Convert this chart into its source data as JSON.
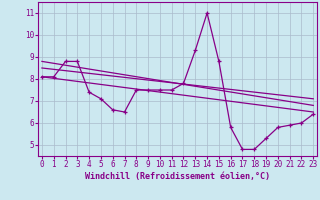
{
  "xlabel": "Windchill (Refroidissement éolien,°C)",
  "background_color": "#cce8f0",
  "line_color": "#880088",
  "grid_color": "#aabbcc",
  "x_ticks": [
    0,
    1,
    2,
    3,
    4,
    5,
    6,
    7,
    8,
    9,
    10,
    11,
    12,
    13,
    14,
    15,
    16,
    17,
    18,
    19,
    20,
    21,
    22,
    23
  ],
  "y_ticks": [
    5,
    6,
    7,
    8,
    9,
    10,
    11
  ],
  "xlim": [
    -0.3,
    23.3
  ],
  "ylim": [
    4.5,
    11.5
  ],
  "series1_x": [
    0,
    1,
    2,
    3,
    4,
    5,
    6,
    7,
    8,
    9,
    10,
    11,
    12,
    13,
    14,
    15,
    16,
    17,
    18,
    19,
    20,
    21,
    22,
    23
  ],
  "series1_y": [
    8.1,
    8.1,
    8.8,
    8.8,
    7.4,
    7.1,
    6.6,
    6.5,
    7.5,
    7.5,
    7.5,
    7.5,
    7.8,
    9.3,
    11.0,
    8.8,
    5.8,
    4.8,
    4.8,
    5.3,
    5.8,
    5.9,
    6.0,
    6.4
  ],
  "series2_x": [
    0,
    23
  ],
  "series2_y": [
    8.8,
    6.8
  ],
  "series3_x": [
    0,
    23
  ],
  "series3_y": [
    8.5,
    7.1
  ],
  "series4_x": [
    0,
    23
  ],
  "series4_y": [
    8.1,
    6.5
  ],
  "tick_fontsize": 5.5,
  "xlabel_fontsize": 6,
  "linewidth": 0.9,
  "marker_size": 3
}
